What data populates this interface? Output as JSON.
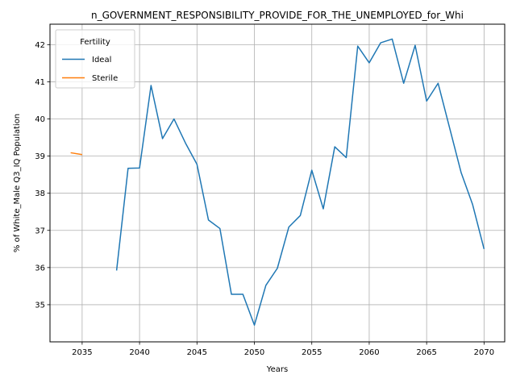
{
  "chart_data": {
    "type": "line",
    "title": "n_GOVERNMENT_RESPONSIBILITY_PROVIDE_FOR_THE_UNEMPLOYED_for_Whi",
    "xlabel": "Years",
    "ylabel": "% of White_Male Q3_IQ Population",
    "xlim": [
      2032.2,
      2071.8
    ],
    "ylim": [
      34.0,
      42.55
    ],
    "x_ticks": [
      2035,
      2040,
      2045,
      2050,
      2055,
      2060,
      2065,
      2070
    ],
    "y_ticks": [
      35,
      36,
      37,
      38,
      39,
      40,
      41,
      42
    ],
    "grid": true,
    "legend": {
      "title": "Fertility",
      "placement": "upper left"
    },
    "series": [
      {
        "name": "Ideal",
        "color": "#1f77b4",
        "x": [
          2038,
          2039,
          2040,
          2041,
          2042,
          2043,
          2044,
          2045,
          2046,
          2047,
          2048,
          2049,
          2050,
          2051,
          2052,
          2053,
          2054,
          2055,
          2056,
          2057,
          2058,
          2059,
          2060,
          2061,
          2062,
          2063,
          2064,
          2065,
          2066,
          2067,
          2068,
          2069,
          2070
        ],
        "y": [
          35.92,
          38.67,
          38.68,
          40.9,
          39.47,
          40.0,
          39.35,
          38.78,
          37.28,
          37.05,
          35.28,
          35.28,
          34.45,
          35.52,
          35.98,
          37.09,
          37.4,
          38.62,
          37.58,
          39.25,
          38.96,
          41.96,
          41.51,
          42.05,
          42.15,
          40.96,
          41.98,
          40.48,
          40.96,
          39.76,
          38.56,
          37.7,
          36.5
        ]
      },
      {
        "name": "Sterile",
        "color": "#ff7f0e",
        "x": [
          2034,
          2035
        ],
        "y": [
          39.09,
          39.04
        ]
      }
    ]
  }
}
